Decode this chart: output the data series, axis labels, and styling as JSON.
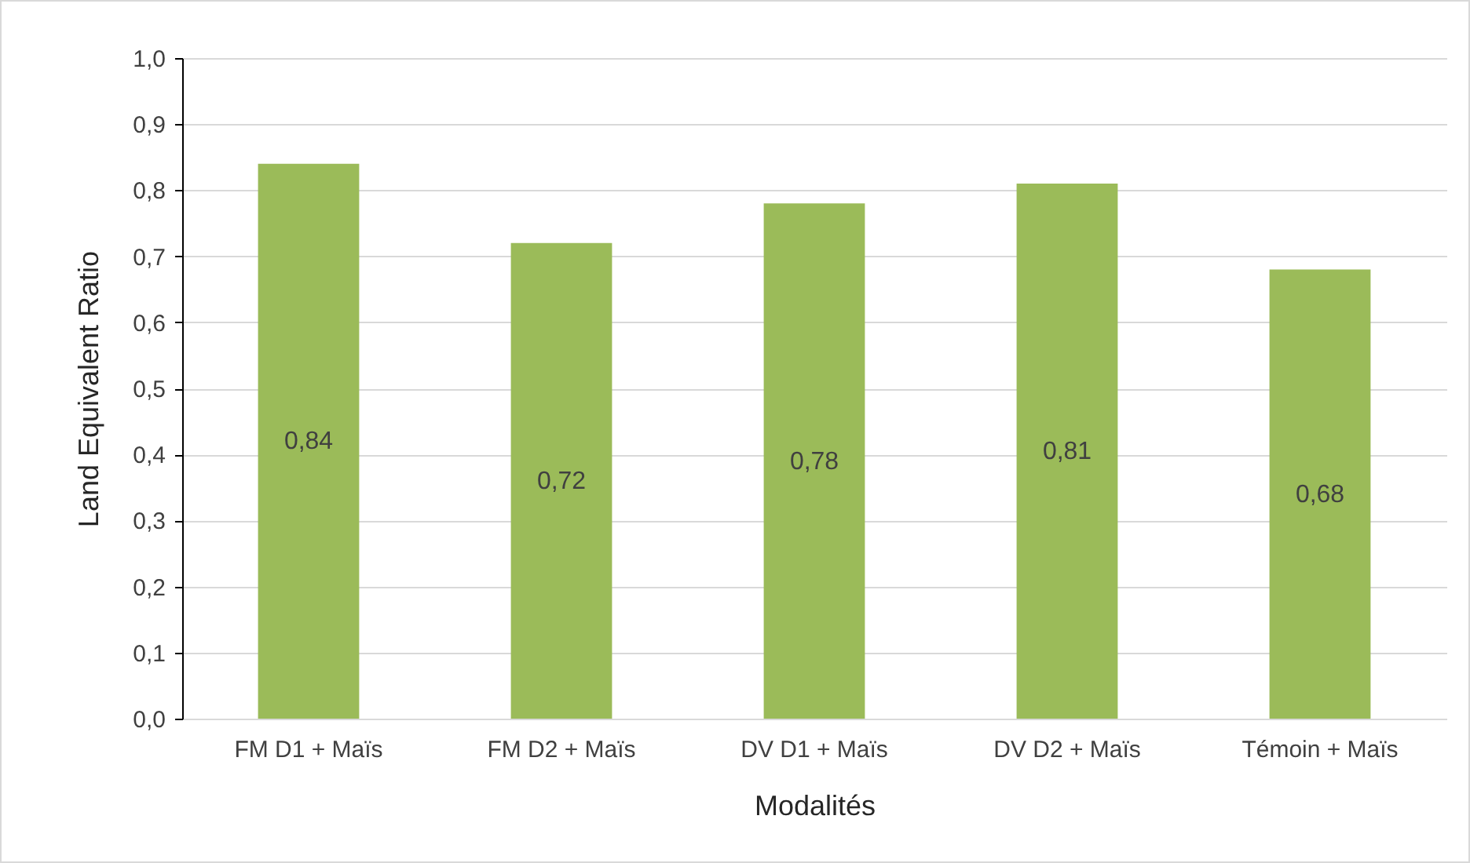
{
  "chart_data": {
    "type": "bar",
    "xlabel": "Modalités",
    "ylabel": "Land Equivalent Ratio",
    "categories": [
      "FM D1 + Maïs",
      "FM D2 + Maïs",
      "DV D1  + Maïs",
      "DV D2  + Maïs",
      "Témoin + Maïs"
    ],
    "values": [
      0.84,
      0.72,
      0.78,
      0.81,
      0.68
    ],
    "value_labels": [
      "0,84",
      "0,72",
      "0,78",
      "0,81",
      "0,68"
    ],
    "color": "#9bbb59",
    "ylim": [
      0,
      1
    ],
    "yticks": [
      {
        "value": 0,
        "label": "0,0"
      },
      {
        "value": 0.1,
        "label": "0,1"
      },
      {
        "value": 0.2,
        "label": "0,2"
      },
      {
        "value": 0.3,
        "label": "0,3"
      },
      {
        "value": 0.4,
        "label": "0,4"
      },
      {
        "value": 0.5,
        "label": "0,5"
      },
      {
        "value": 0.6,
        "label": "0,6"
      },
      {
        "value": 0.7,
        "label": "0,7"
      },
      {
        "value": 0.8,
        "label": "0,8"
      },
      {
        "value": 0.9,
        "label": "0,9"
      },
      {
        "value": 1,
        "label": "1,0"
      }
    ],
    "grid": "y"
  }
}
